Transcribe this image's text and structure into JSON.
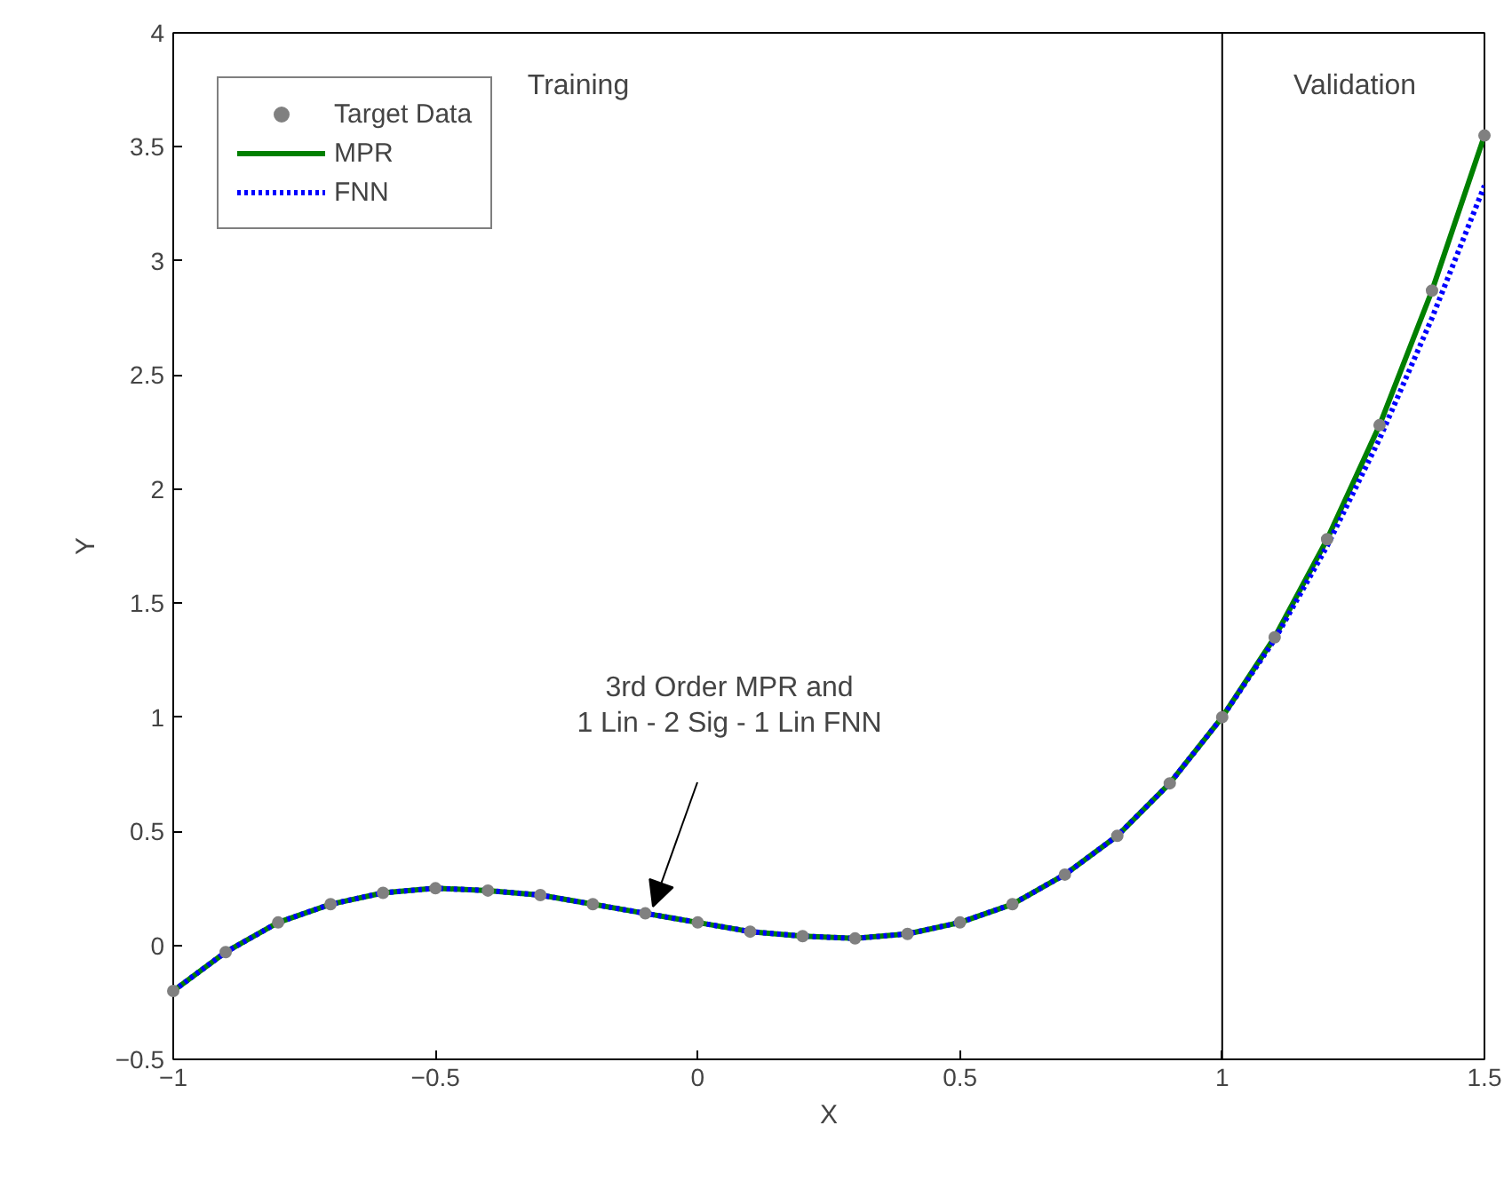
{
  "chart_data": {
    "type": "line",
    "xlabel": "X",
    "ylabel": "Y",
    "x": [
      -1,
      -0.9,
      -0.8,
      -0.7,
      -0.6,
      -0.5,
      -0.4,
      -0.3,
      -0.2,
      -0.1,
      0,
      0.1,
      0.2,
      0.3,
      0.4,
      0.5,
      0.6,
      0.7,
      0.8,
      0.9,
      1.0,
      1.1,
      1.2,
      1.3,
      1.4,
      1.5
    ],
    "series": [
      {
        "name": "Target Data",
        "type": "scatter",
        "marker": "circle",
        "color": "#808080",
        "values": [
          -0.2,
          -0.03,
          0.1,
          0.18,
          0.23,
          0.25,
          0.24,
          0.22,
          0.18,
          0.14,
          0.1,
          0.06,
          0.04,
          0.03,
          0.05,
          0.1,
          0.18,
          0.31,
          0.48,
          0.71,
          1.0,
          1.35,
          1.78,
          2.28,
          2.87,
          3.55
        ]
      },
      {
        "name": "MPR",
        "line_style": "solid",
        "color": "#008000",
        "values": [
          -0.2,
          -0.03,
          0.1,
          0.18,
          0.23,
          0.25,
          0.24,
          0.22,
          0.18,
          0.14,
          0.1,
          0.06,
          0.04,
          0.03,
          0.05,
          0.1,
          0.18,
          0.31,
          0.48,
          0.71,
          1.0,
          1.35,
          1.78,
          2.28,
          2.87,
          3.55
        ]
      },
      {
        "name": "FNN",
        "line_style": "dotted",
        "color": "#0000ff",
        "values": [
          -0.2,
          -0.03,
          0.1,
          0.18,
          0.23,
          0.25,
          0.24,
          0.22,
          0.18,
          0.14,
          0.1,
          0.06,
          0.04,
          0.03,
          0.05,
          0.1,
          0.18,
          0.31,
          0.48,
          0.71,
          1.0,
          1.34,
          1.75,
          2.22,
          2.75,
          3.33
        ]
      }
    ],
    "xlim": [
      -1,
      1.5
    ],
    "xticks": [
      -1,
      -0.5,
      0,
      0.5,
      1,
      1.5
    ],
    "ylim": [
      -0.5,
      4
    ],
    "yticks": [
      -0.5,
      0,
      0.5,
      1,
      1.5,
      2,
      2.5,
      3,
      3.5,
      4
    ],
    "ref_lines": [
      {
        "axis": "x",
        "value": 1,
        "color": "#000000"
      }
    ],
    "annotations": [
      "Training",
      "Validation",
      "3rd Order MPR and\n1 Lin - 2 Sig - 1 Lin FNN"
    ],
    "grid": false,
    "legend": "top left"
  }
}
